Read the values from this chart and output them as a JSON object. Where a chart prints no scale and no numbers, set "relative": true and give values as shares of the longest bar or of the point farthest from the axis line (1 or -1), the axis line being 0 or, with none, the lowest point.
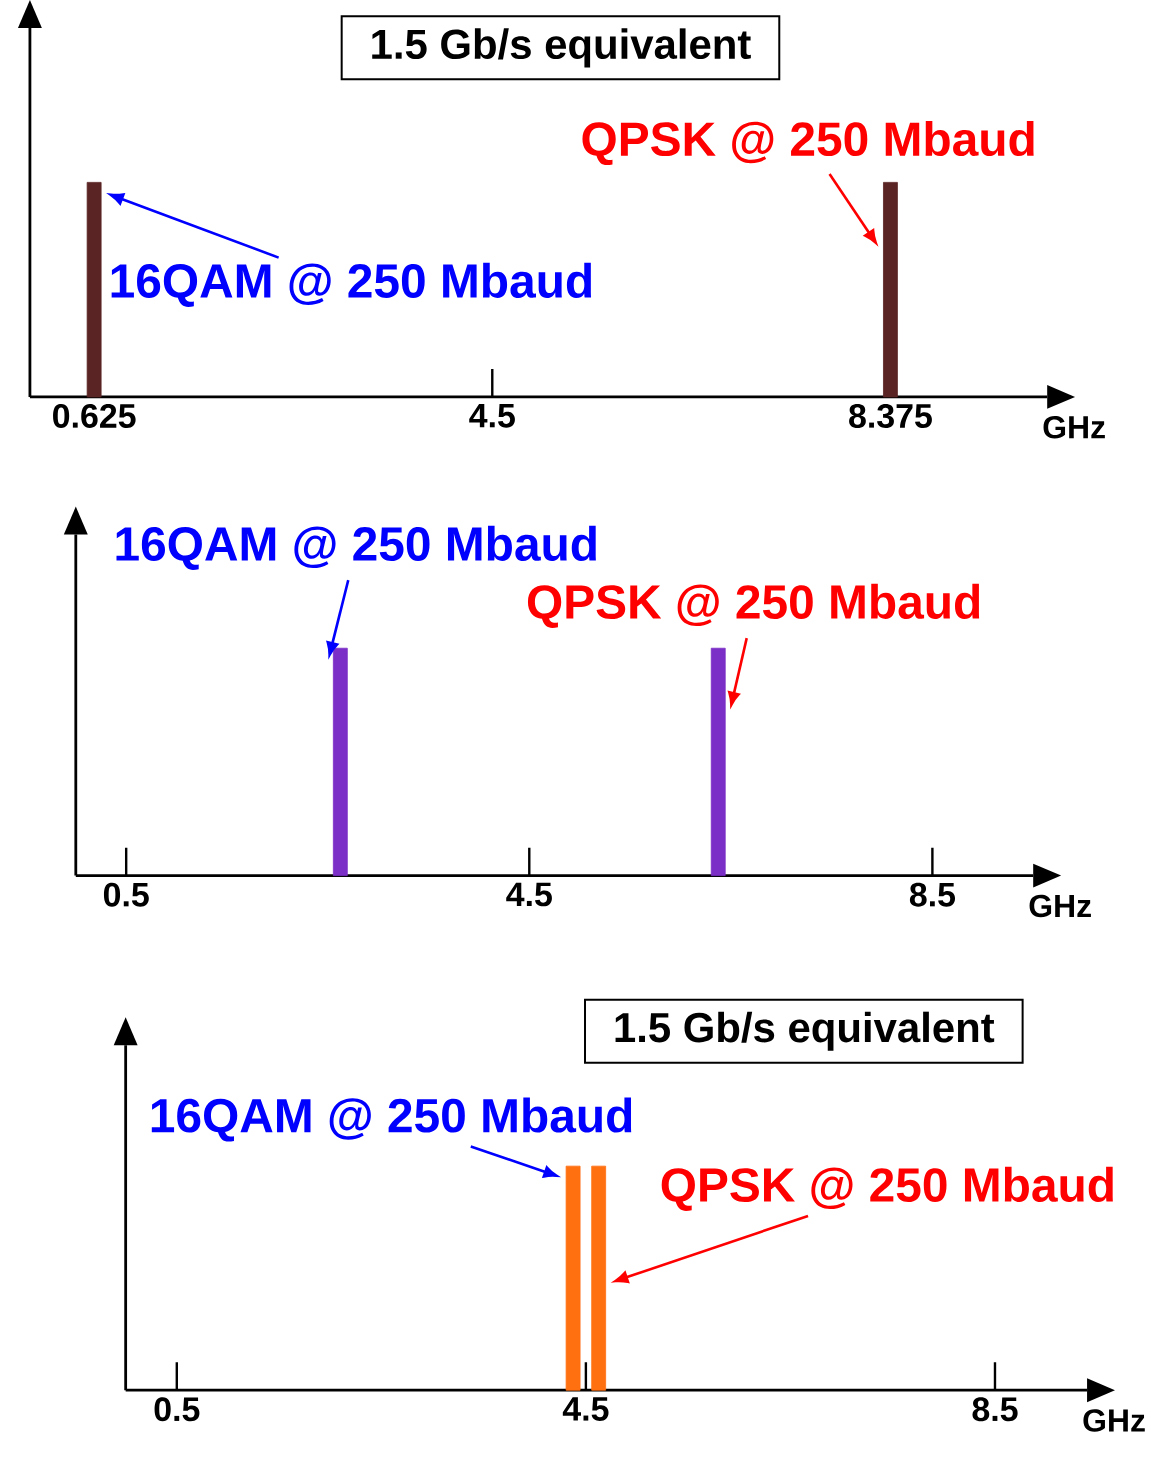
{
  "chart_data": [
    {
      "type": "bar",
      "relative": true,
      "title": "1.5 Gb/s equivalent",
      "xlabel": "GHz",
      "x": [
        0.625,
        8.375
      ],
      "values": [
        1,
        1
      ],
      "colors": [
        "#5a2424",
        "#5a2424"
      ],
      "xlim": [
        0,
        9.9
      ],
      "xticks": [
        0.625,
        4.5,
        8.375
      ],
      "annotations": [
        {
          "text": "16QAM @ 250 Mbaud",
          "x": 0.625,
          "y": 0.95
        },
        {
          "text": "QPSK @ 250 Mbaud",
          "x": 8.375,
          "y": 0.7
        }
      ]
    },
    {
      "type": "bar",
      "relative": true,
      "xlabel": "GHz",
      "x": [
        2.625,
        6.375
      ],
      "values": [
        1,
        1
      ],
      "colors": [
        "#7b2fc6",
        "#7b2fc6"
      ],
      "xlim": [
        0,
        9.5
      ],
      "xticks": [
        0.5,
        4.5,
        8.5
      ],
      "annotations": [
        {
          "text": "16QAM @ 250 Mbaud",
          "x": 2.625,
          "y": 0.95
        },
        {
          "text": "QPSK @ 250 Mbaud",
          "x": 6.375,
          "y": 0.73
        }
      ]
    },
    {
      "type": "bar",
      "relative": true,
      "title": "1.5 Gb/s equivalent",
      "xlabel": "GHz",
      "x": [
        4.375,
        4.625
      ],
      "values": [
        1,
        1
      ],
      "colors": [
        "#ff7010",
        "#ff7010"
      ],
      "xlim": [
        0,
        9.4
      ],
      "xticks": [
        0.5,
        4.5,
        8.5
      ],
      "annotations": [
        {
          "text": "16QAM @ 250 Mbaud",
          "x": 4.375,
          "y": 0.95
        },
        {
          "text": "QPSK @ 250 Mbaud",
          "x": 4.625,
          "y": 0.48
        }
      ]
    }
  ]
}
